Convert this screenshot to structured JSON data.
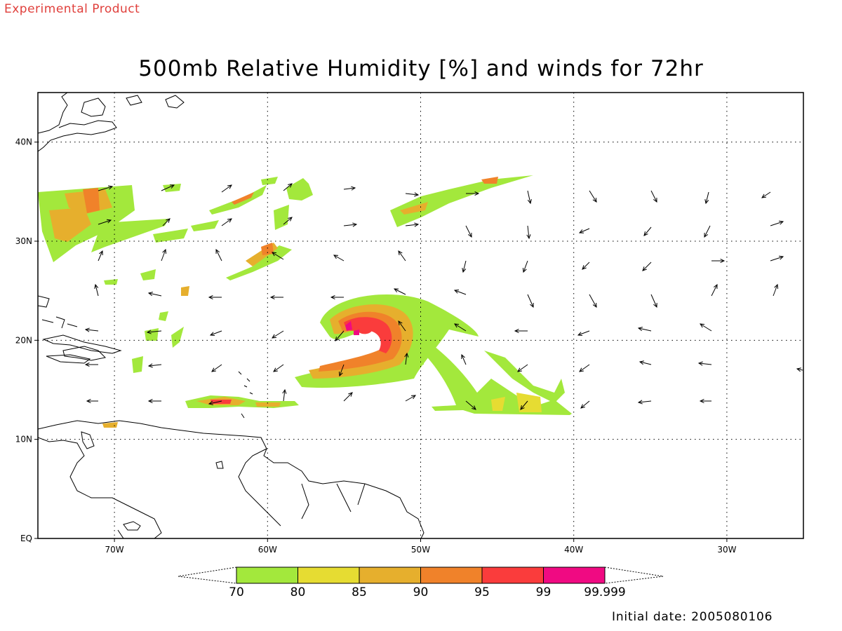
{
  "header": {
    "watermark": "Experimental Product",
    "title": "500mb Relative Humidity [%] and winds for 72hr"
  },
  "map": {
    "lon_range": [
      -75,
      -25
    ],
    "lat_range": [
      0,
      45
    ],
    "lon_ticks": [
      {
        "value": -70,
        "label": "70W"
      },
      {
        "value": -60,
        "label": "60W"
      },
      {
        "value": -50,
        "label": "50W"
      },
      {
        "value": -40,
        "label": "40W"
      },
      {
        "value": -30,
        "label": "30W"
      }
    ],
    "lat_ticks": [
      {
        "value": 40,
        "label": "40N"
      },
      {
        "value": 30,
        "label": "30N"
      },
      {
        "value": 20,
        "label": "20N"
      },
      {
        "value": 10,
        "label": "10N"
      },
      {
        "value": 0,
        "label": "EQ"
      }
    ],
    "grid": "dotted"
  },
  "colorbar": {
    "labels": [
      "70",
      "80",
      "85",
      "90",
      "95",
      "99",
      "99.999"
    ],
    "colors": [
      "#a3e83c",
      "#e6dc32",
      "#e6af2d",
      "#f0822a",
      "#fa3c3c",
      "#f00a82"
    ]
  },
  "footer": {
    "initial_date": "Initial date: 2005080106"
  }
}
